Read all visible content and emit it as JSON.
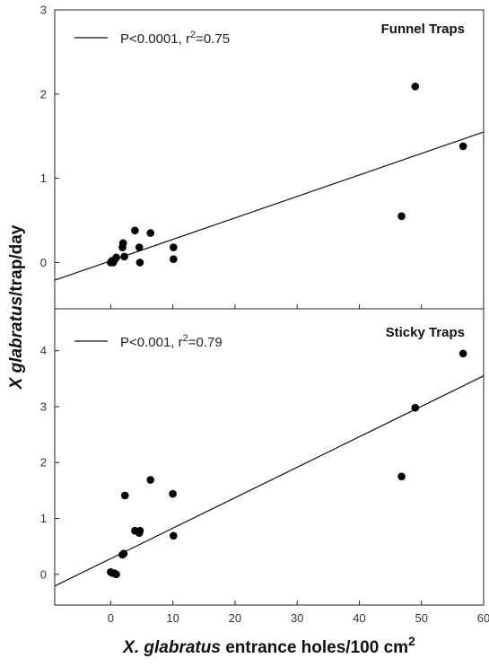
{
  "chart_data": [
    {
      "type": "scatter",
      "title": "Funnel Traps",
      "legend": {
        "prefix": "P<0.0001, r",
        "sup": "2",
        "suffix": "=0.75",
        "placement": "top-left"
      },
      "xlim": [
        -9,
        60
      ],
      "ylim": [
        -0.55,
        3
      ],
      "y_ticks": [
        0,
        1,
        2,
        3
      ],
      "x": [
        0.0,
        0.2,
        0.4,
        0.6,
        0.9,
        1.9,
        2.0,
        2.2,
        3.9,
        4.6,
        4.7,
        6.4,
        10.1,
        10.1,
        46.8,
        49.0,
        56.7
      ],
      "y": [
        0.0,
        0.02,
        0.0,
        0.03,
        0.06,
        0.18,
        0.23,
        0.07,
        0.38,
        0.18,
        0.0,
        0.35,
        0.04,
        0.18,
        0.55,
        2.09,
        1.38
      ],
      "fit_line": {
        "x": [
          -9,
          60
        ],
        "y": [
          -0.21,
          1.55
        ]
      }
    },
    {
      "type": "scatter",
      "title": "Sticky Traps",
      "legend": {
        "prefix": "P<0.001, r",
        "sup": "2",
        "suffix": "=0.79",
        "placement": "top-left"
      },
      "xlim": [
        -9,
        60
      ],
      "ylim": [
        -0.55,
        4.75
      ],
      "y_ticks": [
        0,
        1,
        2,
        3,
        4
      ],
      "x": [
        0.0,
        0.3,
        0.6,
        0.9,
        1.9,
        2.1,
        2.3,
        3.9,
        4.6,
        4.7,
        6.4,
        10.0,
        10.1,
        46.8,
        49.0,
        56.7
      ],
      "y": [
        0.04,
        0.02,
        0.02,
        0.0,
        0.35,
        0.37,
        1.41,
        0.78,
        0.74,
        0.78,
        1.69,
        1.44,
        0.69,
        1.75,
        2.98,
        3.95
      ],
      "fit_line": {
        "x": [
          -9,
          60
        ],
        "y": [
          -0.21,
          3.55
        ]
      }
    }
  ],
  "shared_x_ticks": [
    0,
    10,
    20,
    30,
    40,
    50,
    60
  ],
  "ylabel": {
    "italic": "X glabratus",
    "rest": "/trap/day"
  },
  "xlabel": {
    "italic": "X. glabratus",
    "rest": " entrance holes/100 cm",
    "sup": "2"
  }
}
